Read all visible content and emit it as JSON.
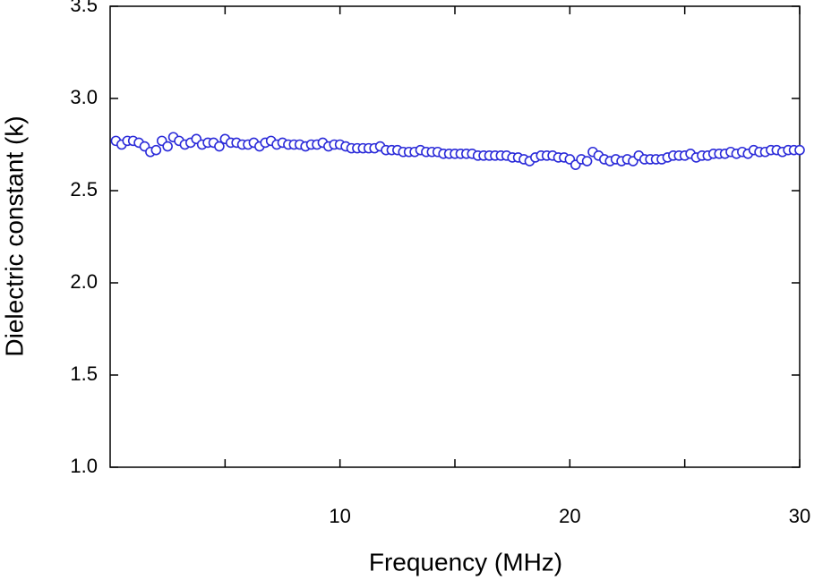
{
  "chart_data": {
    "type": "scatter",
    "x_label": "Frequency (MHz)",
    "y_label": "Dielectric constant (k)",
    "xlim": [
      0,
      30
    ],
    "xticks": [
      10,
      20,
      30
    ],
    "xminorticks": [
      5,
      15,
      25
    ],
    "ylim": [
      1,
      3.5
    ],
    "yticks": [
      {
        "value": 1,
        "label": "1.0"
      },
      1.5,
      {
        "value": 2,
        "label": "2.0"
      },
      2.5,
      {
        "value": 3,
        "label": "3.0"
      },
      3.5
    ],
    "grid": false,
    "series": [
      {
        "name": "Dielectric constant",
        "color": "#2b2bd9",
        "x": [
          0.25,
          0.5,
          0.75,
          1,
          1.25,
          1.5,
          1.75,
          2,
          2.25,
          2.5,
          2.75,
          3,
          3.25,
          3.5,
          3.75,
          4,
          4.25,
          4.5,
          4.75,
          5,
          5.25,
          5.5,
          5.75,
          6,
          6.25,
          6.5,
          6.75,
          7,
          7.25,
          7.5,
          7.75,
          8,
          8.25,
          8.5,
          8.75,
          9,
          9.25,
          9.5,
          9.75,
          10,
          10.25,
          10.5,
          10.75,
          11,
          11.25,
          11.5,
          11.75,
          12,
          12.25,
          12.5,
          12.75,
          13,
          13.25,
          13.5,
          13.75,
          14,
          14.25,
          14.5,
          14.75,
          15,
          15.25,
          15.5,
          15.75,
          16,
          16.25,
          16.5,
          16.75,
          17,
          17.25,
          17.5,
          17.75,
          18,
          18.25,
          18.5,
          18.75,
          19,
          19.25,
          19.5,
          19.75,
          20,
          20.25,
          20.5,
          20.75,
          21,
          21.25,
          21.5,
          21.75,
          22,
          22.25,
          22.5,
          22.75,
          23,
          23.25,
          23.5,
          23.75,
          24,
          24.25,
          24.5,
          24.75,
          25,
          25.25,
          25.5,
          25.75,
          26,
          26.25,
          26.5,
          26.75,
          27,
          27.25,
          27.5,
          27.75,
          28,
          28.25,
          28.5,
          28.75,
          29,
          29.25,
          29.5,
          29.75,
          30
        ],
        "values": [
          2.77,
          2.75,
          2.77,
          2.77,
          2.76,
          2.74,
          2.71,
          2.72,
          2.77,
          2.74,
          2.79,
          2.77,
          2.75,
          2.76,
          2.78,
          2.75,
          2.76,
          2.76,
          2.74,
          2.78,
          2.76,
          2.76,
          2.75,
          2.75,
          2.76,
          2.74,
          2.76,
          2.77,
          2.75,
          2.76,
          2.75,
          2.75,
          2.75,
          2.74,
          2.75,
          2.75,
          2.76,
          2.74,
          2.75,
          2.75,
          2.74,
          2.73,
          2.73,
          2.73,
          2.73,
          2.73,
          2.74,
          2.72,
          2.72,
          2.72,
          2.71,
          2.71,
          2.71,
          2.72,
          2.71,
          2.71,
          2.71,
          2.7,
          2.7,
          2.7,
          2.7,
          2.7,
          2.7,
          2.69,
          2.69,
          2.69,
          2.69,
          2.69,
          2.69,
          2.68,
          2.68,
          2.67,
          2.66,
          2.68,
          2.69,
          2.69,
          2.69,
          2.68,
          2.68,
          2.67,
          2.64,
          2.67,
          2.66,
          2.71,
          2.69,
          2.67,
          2.66,
          2.67,
          2.66,
          2.67,
          2.66,
          2.69,
          2.67,
          2.67,
          2.67,
          2.67,
          2.68,
          2.69,
          2.69,
          2.69,
          2.7,
          2.68,
          2.69,
          2.69,
          2.7,
          2.7,
          2.7,
          2.71,
          2.7,
          2.71,
          2.7,
          2.72,
          2.71,
          2.71,
          2.72,
          2.72,
          2.71,
          2.72,
          2.72,
          2.72
        ]
      }
    ]
  }
}
